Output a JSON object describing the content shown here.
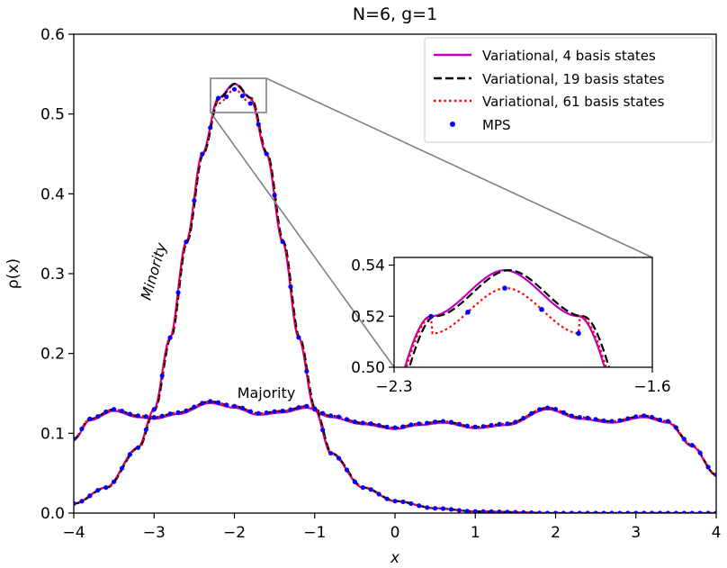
{
  "chart_data": {
    "type": "line",
    "title": "N=6, g=1",
    "xlabel": "x",
    "ylabel": "ρ(x)",
    "xlim": [
      -4,
      4
    ],
    "ylim": [
      0,
      0.6
    ],
    "xticks": [
      -4,
      -3,
      -2,
      -1,
      0,
      1,
      2,
      3,
      4
    ],
    "xtick_labels": [
      "−4",
      "−3",
      "−2",
      "−1",
      "0",
      "1",
      "2",
      "3",
      "4"
    ],
    "yticks": [
      0.0,
      0.1,
      0.2,
      0.3,
      0.4,
      0.5,
      0.6
    ],
    "ytick_labels": [
      "0.0",
      "0.1",
      "0.2",
      "0.3",
      "0.4",
      "0.5",
      "0.6"
    ],
    "grid": false,
    "legend_position": "top-right",
    "annotations": [
      {
        "text": "Minority",
        "x": -2.78,
        "y": 0.3,
        "rotation": -74
      },
      {
        "text": "Majority",
        "x": -1.6,
        "y": 0.15,
        "rotation": 0
      }
    ],
    "series": [
      {
        "name": "Variational, 4 basis states",
        "color": "#bf00bf",
        "style": "solid",
        "minority_shift": 0,
        "minority_amp": 0.538,
        "majority_scale": 0.985
      },
      {
        "name": "Variational, 19 basis states",
        "color": "#000000",
        "style": "dashed",
        "minority_shift": 0.012,
        "minority_amp": 0.538,
        "majority_scale": 1.0
      },
      {
        "name": "Variational, 61 basis states",
        "color": "#ff0000",
        "style": "dotted",
        "minority_shift": 0.004,
        "minority_amp": 0.531,
        "majority_scale": 1.0
      },
      {
        "name": "MPS",
        "color": "#0000ff",
        "style": "points",
        "minority_shift": 0.004,
        "minority_amp": 0.531,
        "majority_scale": 1.0
      }
    ],
    "minority_points": [
      [
        -4.0,
        0.012
      ],
      [
        -3.6,
        0.032
      ],
      [
        -3.2,
        0.082
      ],
      [
        -3.0,
        0.13
      ],
      [
        -2.8,
        0.22
      ],
      [
        -2.6,
        0.34
      ],
      [
        -2.4,
        0.45
      ],
      [
        -2.2,
        0.52
      ],
      [
        -2.0,
        0.538
      ],
      [
        -1.8,
        0.52
      ],
      [
        -1.6,
        0.45
      ],
      [
        -1.4,
        0.34
      ],
      [
        -1.2,
        0.22
      ],
      [
        -1.0,
        0.13
      ],
      [
        -0.8,
        0.075
      ],
      [
        -0.4,
        0.032
      ],
      [
        0.0,
        0.015
      ],
      [
        0.5,
        0.006
      ],
      [
        1.0,
        0.002
      ],
      [
        2.0,
        0.0
      ],
      [
        4.0,
        0.0
      ]
    ],
    "majority_points": [
      [
        -4.0,
        0.093
      ],
      [
        -3.8,
        0.118
      ],
      [
        -3.5,
        0.13
      ],
      [
        -3.2,
        0.122
      ],
      [
        -3.0,
        0.12
      ],
      [
        -2.7,
        0.126
      ],
      [
        -2.3,
        0.14
      ],
      [
        -2.0,
        0.134
      ],
      [
        -1.7,
        0.125
      ],
      [
        -1.4,
        0.128
      ],
      [
        -1.1,
        0.134
      ],
      [
        -0.8,
        0.122
      ],
      [
        -0.4,
        0.113
      ],
      [
        0.0,
        0.107
      ],
      [
        0.3,
        0.112
      ],
      [
        0.6,
        0.115
      ],
      [
        1.0,
        0.108
      ],
      [
        1.4,
        0.112
      ],
      [
        1.9,
        0.132
      ],
      [
        2.3,
        0.12
      ],
      [
        2.7,
        0.115
      ],
      [
        3.1,
        0.122
      ],
      [
        3.4,
        0.115
      ],
      [
        3.7,
        0.085
      ],
      [
        4.0,
        0.048
      ]
    ],
    "inset": {
      "xlim": [
        -2.3,
        -1.6
      ],
      "ylim": [
        0.5,
        0.543
      ],
      "xtick_labels": [
        "−2.3",
        "−1.6"
      ],
      "yticks": [
        0.5,
        0.52,
        0.54
      ],
      "ytick_labels": [
        "0.50",
        "0.52",
        "0.54"
      ]
    }
  }
}
